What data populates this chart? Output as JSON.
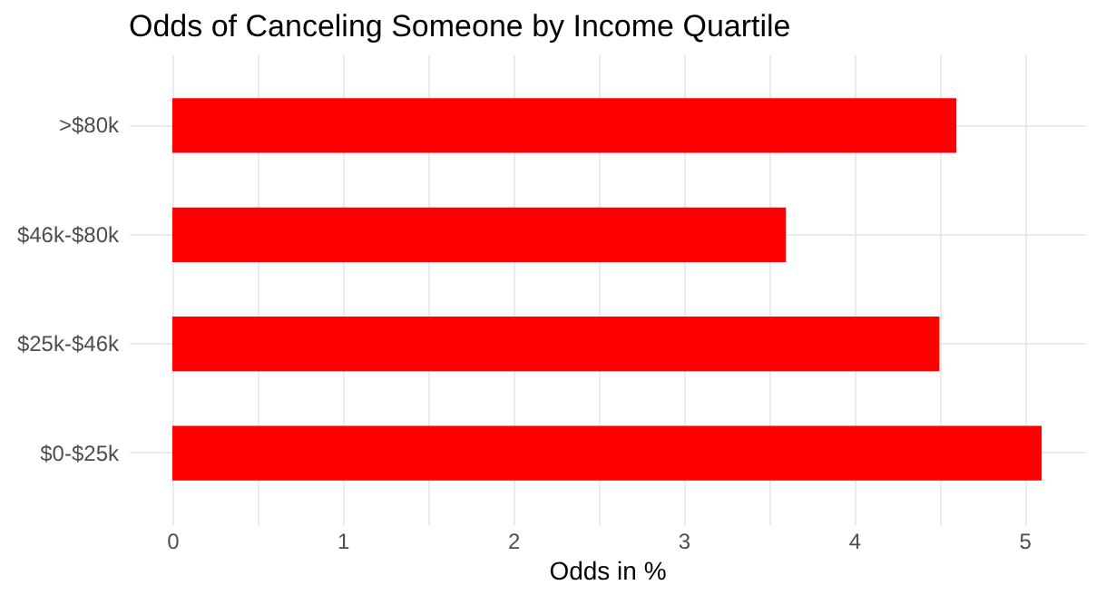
{
  "chart_data": {
    "type": "bar",
    "title": "Odds of Canceling Someone by Income Quartile",
    "xlabel": "Odds in %",
    "orientation": "horizontal",
    "categories": [
      ">$80k",
      "$46k-$80k",
      "$25k-$46k",
      "$0-$25k"
    ],
    "values": [
      4.6,
      3.6,
      4.5,
      5.1
    ],
    "color": "#ff0000",
    "xlim": [
      -0.255,
      5.355
    ],
    "xticks": [
      0,
      {
        "value": 0.5,
        "label": null
      },
      1,
      {
        "value": 1.5,
        "label": null
      },
      2,
      {
        "value": 2.5,
        "label": null
      },
      3,
      {
        "value": 3.5,
        "label": null
      },
      4,
      {
        "value": 4.5,
        "label": null
      },
      5
    ],
    "grid": true
  }
}
